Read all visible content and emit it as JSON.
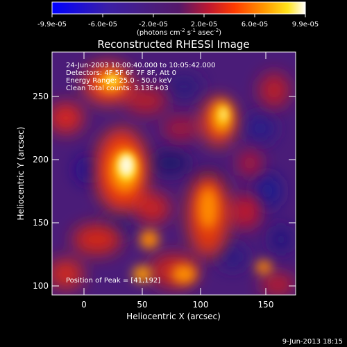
{
  "colorbar": {
    "ticks": [
      "-9.9e-05",
      "-6.0e-05",
      "-2.0e-05",
      "2.0e-05",
      "6.0e-05",
      "9.9e-05"
    ],
    "units": "(photons cm",
    "units_exp1": "-2",
    "units_mid": " s",
    "units_exp2": "-1",
    "units_end": " asec",
    "units_exp3": "-2",
    "units_close": ")"
  },
  "plot": {
    "title": "Reconstructed RHESSI Image",
    "xlabel": "Heliocentric X (arcsec)",
    "ylabel": "Heliocentric Y (arcsec)",
    "x_ticks": [
      "0",
      "50",
      "100",
      "150"
    ],
    "y_ticks": [
      "100",
      "150",
      "200",
      "250"
    ],
    "xlim": [
      -16,
      172
    ],
    "ylim": [
      92,
      283
    ],
    "info": [
      "24-Jun-2003 10:00:40.000 to 10:05:42.000",
      "Detectors: 4F 5F 6F 7F 8F, Att 0",
      "Energy Range: 25.0 - 50.0 keV",
      "Clean     Total counts: 3.13E+03"
    ],
    "peak_label": "Position of Peak = [41,192]",
    "peak_position": [
      41,
      192
    ]
  },
  "footer": {
    "date": "9-Jun-2013 18:15"
  },
  "colors": {
    "background": "#000000",
    "text": "#ffffff"
  }
}
